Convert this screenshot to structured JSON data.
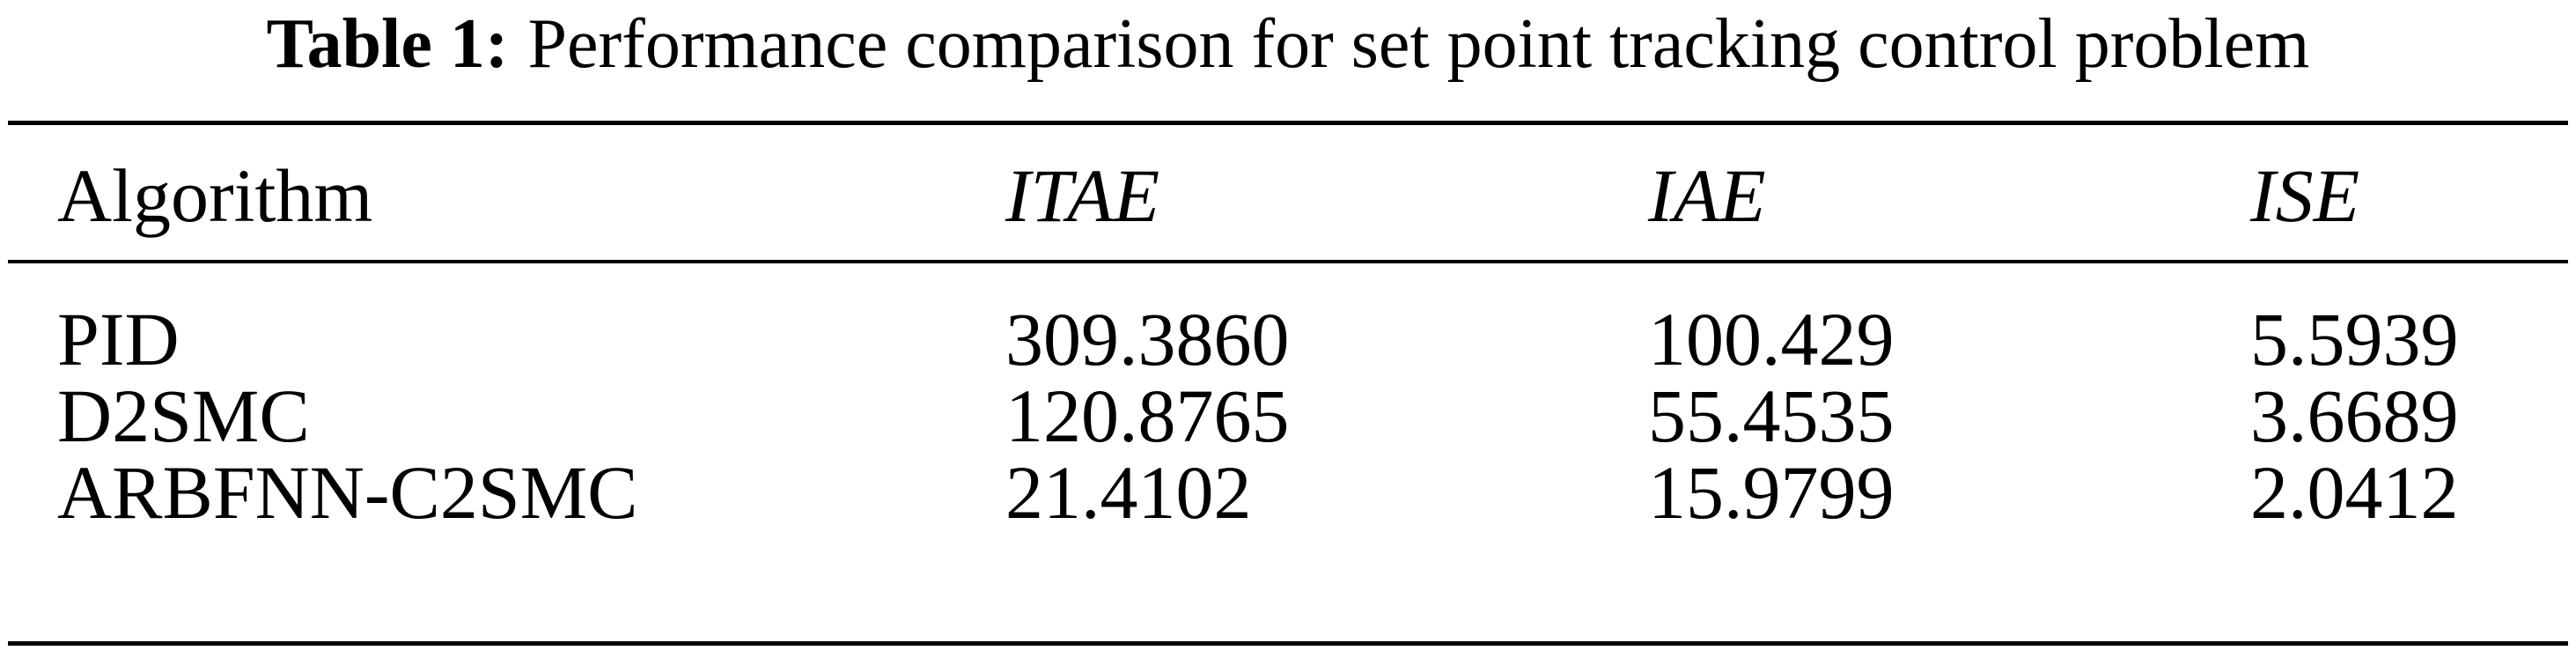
{
  "table": {
    "label": "Table 1:",
    "caption": "Performance comparison for set point tracking control problem",
    "headers": [
      "Algorithm",
      "ITAE",
      "IAE",
      "ISE"
    ],
    "rows": [
      [
        "PID",
        "309.3860",
        "100.429",
        "5.5939"
      ],
      [
        "D2SMC",
        "120.8765",
        "55.4535",
        "3.6689"
      ],
      [
        "ARBFNN-C2SMC",
        "21.4102",
        "15.9799",
        "2.0412"
      ]
    ]
  }
}
